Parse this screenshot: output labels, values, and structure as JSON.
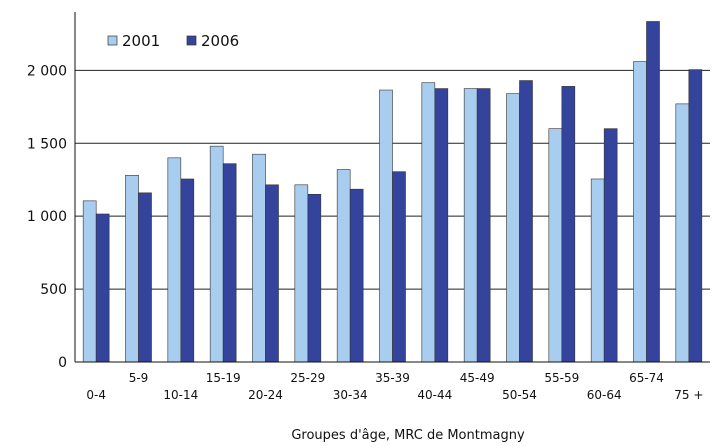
{
  "chart_data": {
    "type": "bar",
    "xlabel": "Groupes d'âge, MRC de Montmagny",
    "ylabel": "",
    "ylim": [
      0,
      2400
    ],
    "yticks": [
      0,
      500,
      1000,
      1500,
      2000
    ],
    "ytick_labels": [
      "0",
      "500",
      "1 000",
      "1 500",
      "2 000"
    ],
    "grid": true,
    "legend_position": "top-left",
    "categories": [
      "0-4",
      "5-9",
      "10-14",
      "15-19",
      "20-24",
      "25-29",
      "30-34",
      "35-39",
      "40-44",
      "45-49",
      "50-54",
      "55-59",
      "60-64",
      "65-74",
      "75 +"
    ],
    "series": [
      {
        "name": "2001",
        "color": "#a9cdef",
        "values": [
          1105,
          1280,
          1400,
          1480,
          1425,
          1215,
          1320,
          1865,
          1915,
          1875,
          1840,
          1600,
          1255,
          2060,
          1770
        ]
      },
      {
        "name": "2006",
        "color": "#34449c",
        "values": [
          1015,
          1160,
          1255,
          1360,
          1215,
          1150,
          1185,
          1305,
          1875,
          1875,
          1930,
          1890,
          1600,
          2335,
          2005
        ]
      }
    ]
  }
}
